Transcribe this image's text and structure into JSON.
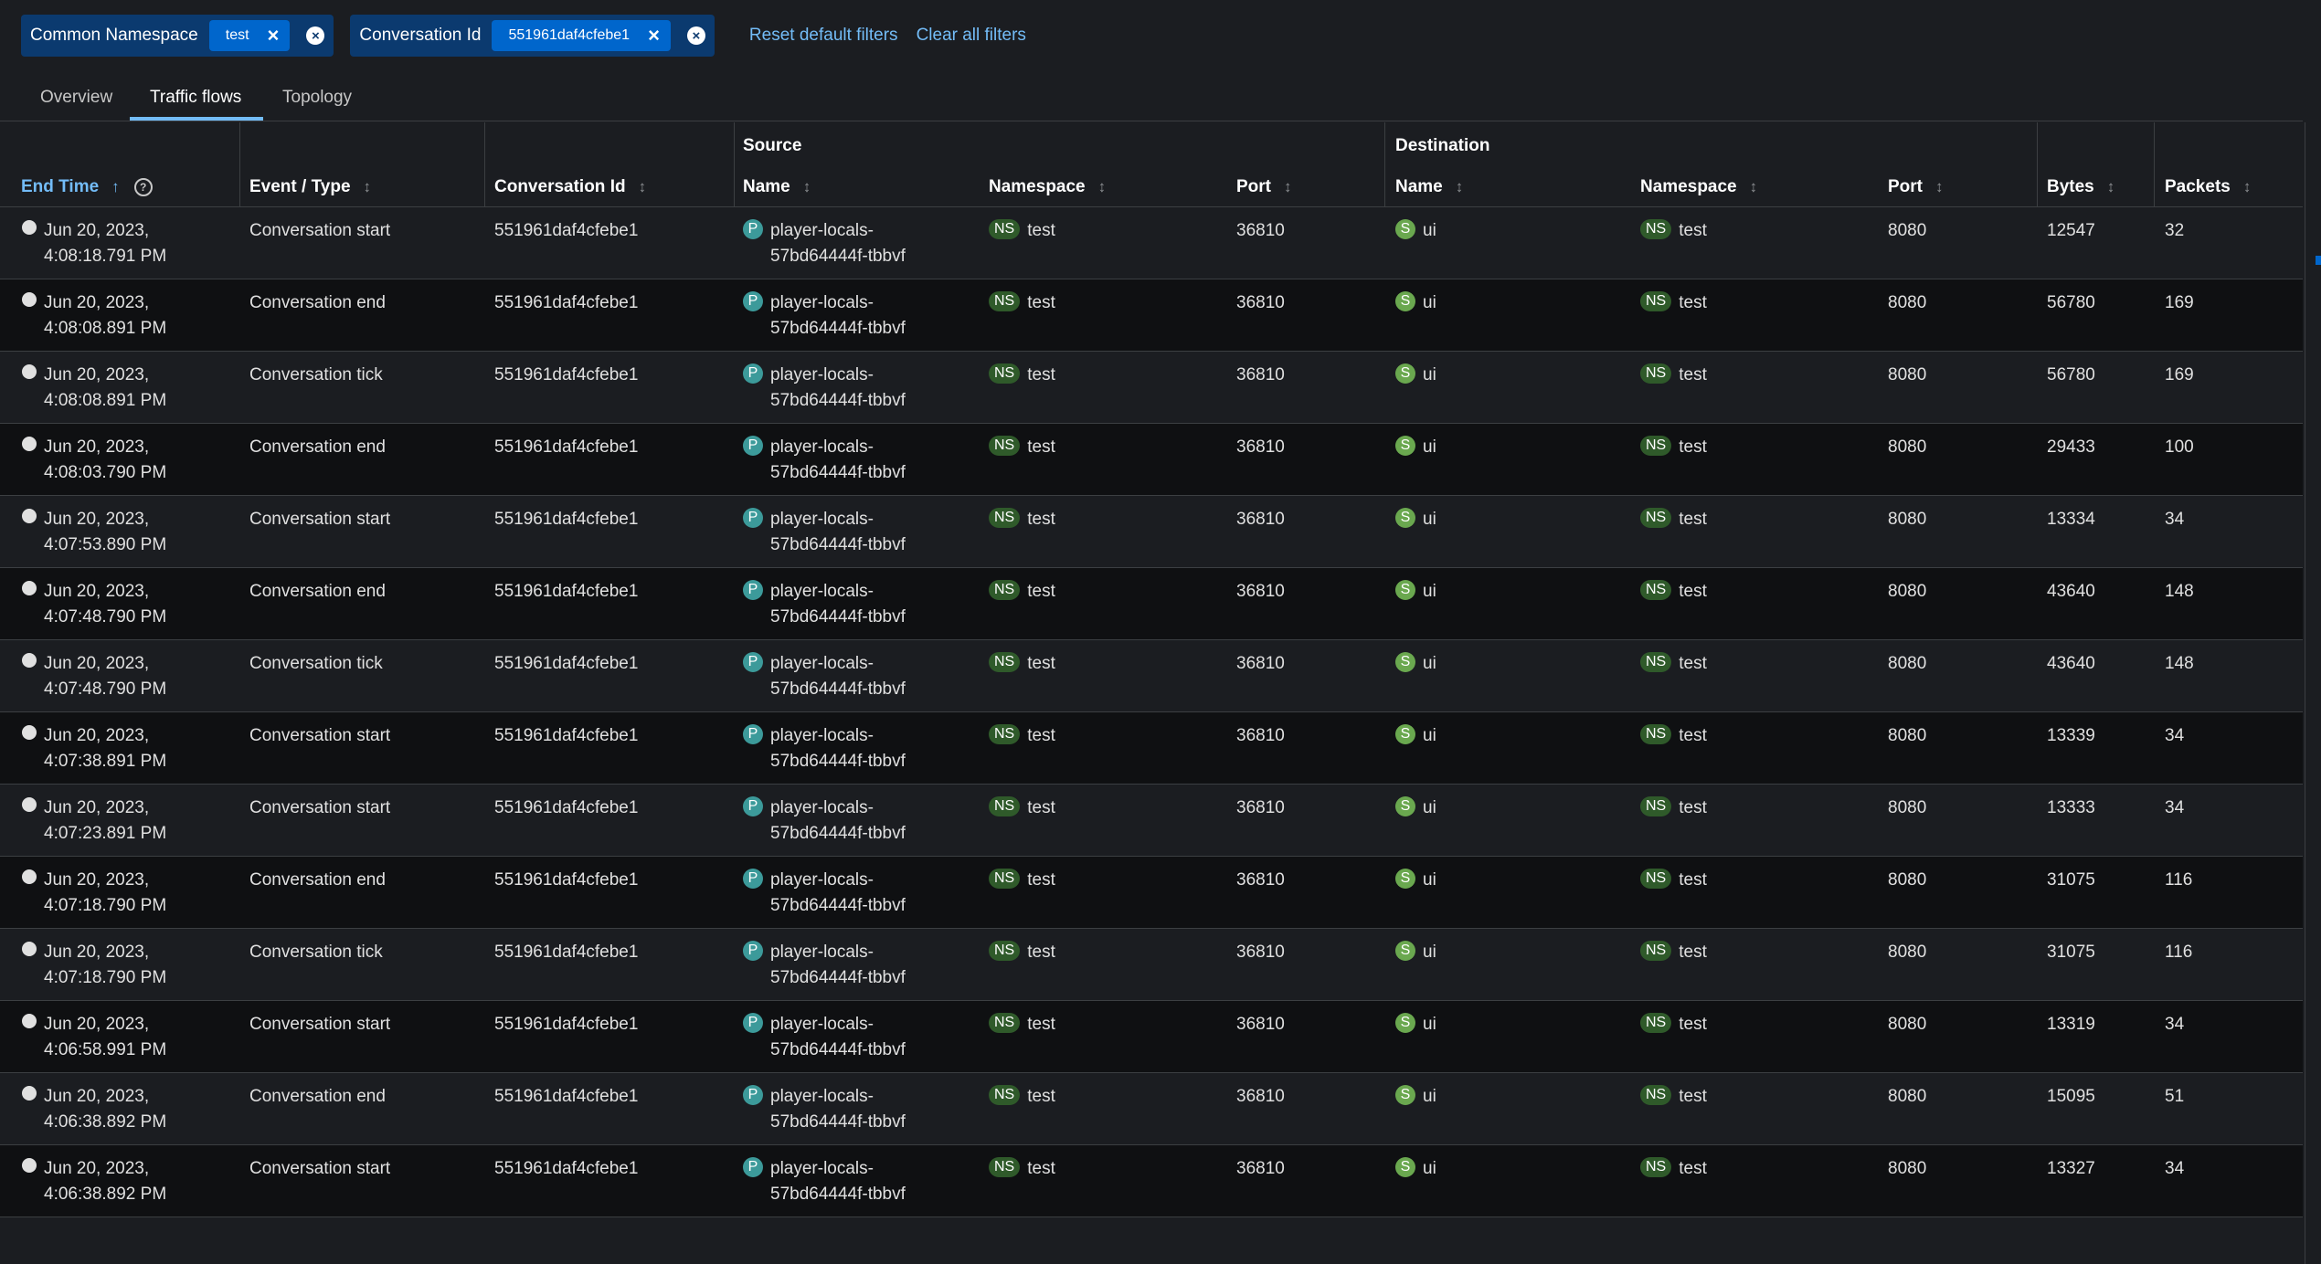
{
  "filters": {
    "groups": [
      {
        "category": "Common Namespace",
        "value": "test"
      },
      {
        "category": "Conversation Id",
        "value": "551961daf4cfebe1"
      }
    ],
    "reset_label": "Reset default filters",
    "clear_label": "Clear all filters"
  },
  "tabs": [
    {
      "label": "Overview"
    },
    {
      "label": "Traffic flows"
    },
    {
      "label": "Topology"
    }
  ],
  "table": {
    "group_source": "Source",
    "group_destination": "Destination",
    "columns": {
      "end_time": "End Time",
      "event_type": "Event / Type",
      "conversation_id": "Conversation Id",
      "src_name": "Name",
      "src_namespace": "Namespace",
      "src_port": "Port",
      "dst_name": "Name",
      "dst_namespace": "Namespace",
      "dst_port": "Port",
      "bytes": "Bytes",
      "packets": "Packets"
    },
    "rows": [
      {
        "date": "Jun 20, 2023,",
        "time": "4:08:18.791 PM",
        "event": "Conversation start",
        "conv": "551961daf4cfebe1",
        "src_name_1": "player-locals-",
        "src_name_2": "57bd64444f-tbbvf",
        "src_ns": "test",
        "src_port": "36810",
        "dst_name": "ui",
        "dst_ns": "test",
        "dst_port": "8080",
        "bytes": "12547",
        "packets": "32"
      },
      {
        "date": "Jun 20, 2023,",
        "time": "4:08:08.891 PM",
        "event": "Conversation end",
        "conv": "551961daf4cfebe1",
        "src_name_1": "player-locals-",
        "src_name_2": "57bd64444f-tbbvf",
        "src_ns": "test",
        "src_port": "36810",
        "dst_name": "ui",
        "dst_ns": "test",
        "dst_port": "8080",
        "bytes": "56780",
        "packets": "169"
      },
      {
        "date": "Jun 20, 2023,",
        "time": "4:08:08.891 PM",
        "event": "Conversation tick",
        "conv": "551961daf4cfebe1",
        "src_name_1": "player-locals-",
        "src_name_2": "57bd64444f-tbbvf",
        "src_ns": "test",
        "src_port": "36810",
        "dst_name": "ui",
        "dst_ns": "test",
        "dst_port": "8080",
        "bytes": "56780",
        "packets": "169"
      },
      {
        "date": "Jun 20, 2023,",
        "time": "4:08:03.790 PM",
        "event": "Conversation end",
        "conv": "551961daf4cfebe1",
        "src_name_1": "player-locals-",
        "src_name_2": "57bd64444f-tbbvf",
        "src_ns": "test",
        "src_port": "36810",
        "dst_name": "ui",
        "dst_ns": "test",
        "dst_port": "8080",
        "bytes": "29433",
        "packets": "100"
      },
      {
        "date": "Jun 20, 2023,",
        "time": "4:07:53.890 PM",
        "event": "Conversation start",
        "conv": "551961daf4cfebe1",
        "src_name_1": "player-locals-",
        "src_name_2": "57bd64444f-tbbvf",
        "src_ns": "test",
        "src_port": "36810",
        "dst_name": "ui",
        "dst_ns": "test",
        "dst_port": "8080",
        "bytes": "13334",
        "packets": "34"
      },
      {
        "date": "Jun 20, 2023,",
        "time": "4:07:48.790 PM",
        "event": "Conversation end",
        "conv": "551961daf4cfebe1",
        "src_name_1": "player-locals-",
        "src_name_2": "57bd64444f-tbbvf",
        "src_ns": "test",
        "src_port": "36810",
        "dst_name": "ui",
        "dst_ns": "test",
        "dst_port": "8080",
        "bytes": "43640",
        "packets": "148"
      },
      {
        "date": "Jun 20, 2023,",
        "time": "4:07:48.790 PM",
        "event": "Conversation tick",
        "conv": "551961daf4cfebe1",
        "src_name_1": "player-locals-",
        "src_name_2": "57bd64444f-tbbvf",
        "src_ns": "test",
        "src_port": "36810",
        "dst_name": "ui",
        "dst_ns": "test",
        "dst_port": "8080",
        "bytes": "43640",
        "packets": "148"
      },
      {
        "date": "Jun 20, 2023,",
        "time": "4:07:38.891 PM",
        "event": "Conversation start",
        "conv": "551961daf4cfebe1",
        "src_name_1": "player-locals-",
        "src_name_2": "57bd64444f-tbbvf",
        "src_ns": "test",
        "src_port": "36810",
        "dst_name": "ui",
        "dst_ns": "test",
        "dst_port": "8080",
        "bytes": "13339",
        "packets": "34"
      },
      {
        "date": "Jun 20, 2023,",
        "time": "4:07:23.891 PM",
        "event": "Conversation start",
        "conv": "551961daf4cfebe1",
        "src_name_1": "player-locals-",
        "src_name_2": "57bd64444f-tbbvf",
        "src_ns": "test",
        "src_port": "36810",
        "dst_name": "ui",
        "dst_ns": "test",
        "dst_port": "8080",
        "bytes": "13333",
        "packets": "34"
      },
      {
        "date": "Jun 20, 2023,",
        "time": "4:07:18.790 PM",
        "event": "Conversation end",
        "conv": "551961daf4cfebe1",
        "src_name_1": "player-locals-",
        "src_name_2": "57bd64444f-tbbvf",
        "src_ns": "test",
        "src_port": "36810",
        "dst_name": "ui",
        "dst_ns": "test",
        "dst_port": "8080",
        "bytes": "31075",
        "packets": "116"
      },
      {
        "date": "Jun 20, 2023,",
        "time": "4:07:18.790 PM",
        "event": "Conversation tick",
        "conv": "551961daf4cfebe1",
        "src_name_1": "player-locals-",
        "src_name_2": "57bd64444f-tbbvf",
        "src_ns": "test",
        "src_port": "36810",
        "dst_name": "ui",
        "dst_ns": "test",
        "dst_port": "8080",
        "bytes": "31075",
        "packets": "116"
      },
      {
        "date": "Jun 20, 2023,",
        "time": "4:06:58.991 PM",
        "event": "Conversation start",
        "conv": "551961daf4cfebe1",
        "src_name_1": "player-locals-",
        "src_name_2": "57bd64444f-tbbvf",
        "src_ns": "test",
        "src_port": "36810",
        "dst_name": "ui",
        "dst_ns": "test",
        "dst_port": "8080",
        "bytes": "13319",
        "packets": "34"
      },
      {
        "date": "Jun 20, 2023,",
        "time": "4:06:38.892 PM",
        "event": "Conversation end",
        "conv": "551961daf4cfebe1",
        "src_name_1": "player-locals-",
        "src_name_2": "57bd64444f-tbbvf",
        "src_ns": "test",
        "src_port": "36810",
        "dst_name": "ui",
        "dst_ns": "test",
        "dst_port": "8080",
        "bytes": "15095",
        "packets": "51"
      },
      {
        "date": "Jun 20, 2023,",
        "time": "4:06:38.892 PM",
        "event": "Conversation start",
        "conv": "551961daf4cfebe1",
        "src_name_1": "player-locals-",
        "src_name_2": "57bd64444f-tbbvf",
        "src_ns": "test",
        "src_port": "36810",
        "dst_name": "ui",
        "dst_ns": "test",
        "dst_port": "8080",
        "bytes": "13327",
        "packets": "34"
      }
    ]
  },
  "badges": {
    "pod": "P",
    "service": "S",
    "namespace": "NS"
  },
  "icons": {
    "sort": "sort-icon",
    "sort_active": "sort-ascending-icon",
    "help": "help-icon",
    "globe": "globe-icon",
    "close": "close-icon"
  },
  "colors": {
    "accent": "#73bcf7",
    "chip": "#0066cc",
    "pod_badge": "#3c9a9a",
    "service_badge": "#6aa84f",
    "ns_badge": "#2f5a2a"
  }
}
